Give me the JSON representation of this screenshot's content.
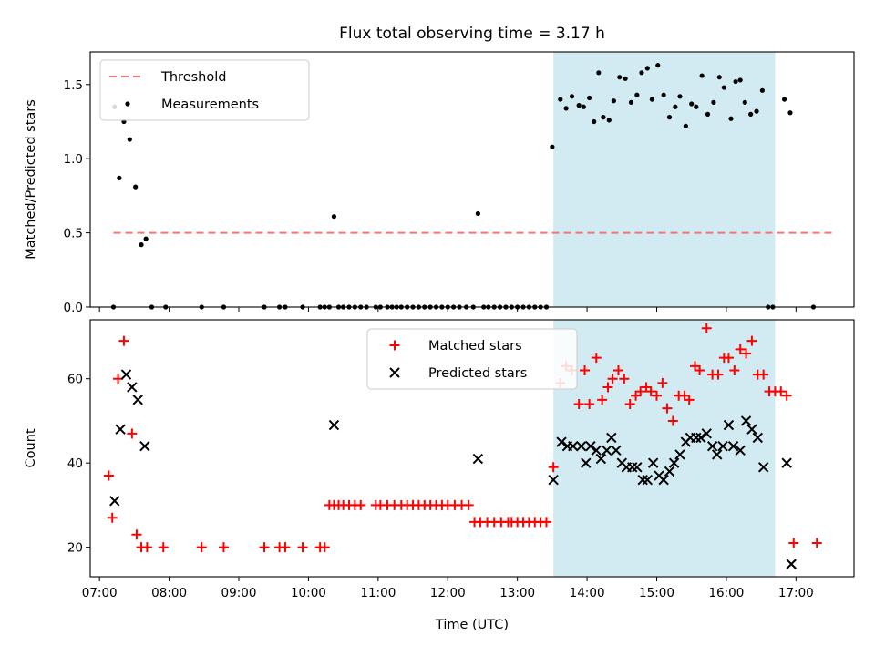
{
  "figure": {
    "title": "Flux total observing time = 3.17 h",
    "shade_color": "#add8e6"
  },
  "chart_data": [
    {
      "type": "scatter",
      "ylabel": "Matched/Predicted stars",
      "xlabel": "",
      "xlim": [
        "06:52",
        "17:50"
      ],
      "ylim": [
        0,
        1.72
      ],
      "x_tick_labels": [],
      "y_ticks": [
        0.0,
        0.5,
        1.0,
        1.5
      ],
      "y_tick_labels": [
        "0.0",
        "0.5",
        "1.0",
        "1.5"
      ],
      "shaded_interval": [
        "13:31",
        "16:42"
      ],
      "legend": {
        "placement": "upper left",
        "entries": [
          "Threshold",
          "Measurements"
        ]
      },
      "series": [
        {
          "name": "Threshold",
          "style": "dashed-line",
          "color": "#ff7070",
          "x": [
            "07:12",
            "17:31"
          ],
          "y": [
            0.5,
            0.5
          ]
        },
        {
          "name": "Measurements",
          "style": "dot",
          "color": "#000000",
          "points": [
            [
              "07:12",
              0.0
            ],
            [
              "07:13",
              1.35
            ],
            [
              "07:17",
              0.87
            ],
            [
              "07:21",
              1.25
            ],
            [
              "07:26",
              1.13
            ],
            [
              "07:31",
              0.81
            ],
            [
              "07:36",
              0.42
            ],
            [
              "07:40",
              0.46
            ],
            [
              "07:45",
              0.0
            ],
            [
              "07:57",
              0.0
            ],
            [
              "08:28",
              0.0
            ],
            [
              "08:47",
              0.0
            ],
            [
              "09:22",
              0.0
            ],
            [
              "09:35",
              0.0
            ],
            [
              "09:40",
              0.0
            ],
            [
              "09:55",
              0.0
            ],
            [
              "10:10",
              0.0
            ],
            [
              "10:14",
              0.0
            ],
            [
              "10:18",
              0.0
            ],
            [
              "10:22",
              0.61
            ],
            [
              "10:26",
              0.0
            ],
            [
              "10:30",
              0.0
            ],
            [
              "10:35",
              0.0
            ],
            [
              "10:40",
              0.0
            ],
            [
              "10:45",
              0.0
            ],
            [
              "10:50",
              0.0
            ],
            [
              "10:58",
              0.0
            ],
            [
              "11:02",
              0.0
            ],
            [
              "11:08",
              0.0
            ],
            [
              "11:12",
              0.0
            ],
            [
              "11:16",
              0.0
            ],
            [
              "11:20",
              0.0
            ],
            [
              "11:25",
              0.0
            ],
            [
              "11:30",
              0.0
            ],
            [
              "11:35",
              0.0
            ],
            [
              "11:40",
              0.0
            ],
            [
              "11:45",
              0.0
            ],
            [
              "11:50",
              0.0
            ],
            [
              "11:55",
              0.0
            ],
            [
              "12:00",
              0.0
            ],
            [
              "12:05",
              0.0
            ],
            [
              "12:10",
              0.0
            ],
            [
              "12:16",
              0.0
            ],
            [
              "12:22",
              0.0
            ],
            [
              "12:26",
              0.63
            ],
            [
              "12:31",
              0.0
            ],
            [
              "12:35",
              0.0
            ],
            [
              "12:40",
              0.0
            ],
            [
              "12:45",
              0.0
            ],
            [
              "12:50",
              0.0
            ],
            [
              "12:55",
              0.0
            ],
            [
              "13:00",
              0.0
            ],
            [
              "13:05",
              0.0
            ],
            [
              "13:10",
              0.0
            ],
            [
              "13:15",
              0.0
            ],
            [
              "13:20",
              0.0
            ],
            [
              "13:25",
              0.0
            ],
            [
              "13:30",
              1.08
            ],
            [
              "13:37",
              1.4
            ],
            [
              "13:42",
              1.34
            ],
            [
              "13:47",
              1.42
            ],
            [
              "13:53",
              1.36
            ],
            [
              "13:57",
              1.35
            ],
            [
              "14:02",
              1.41
            ],
            [
              "14:06",
              1.25
            ],
            [
              "14:10",
              1.58
            ],
            [
              "14:14",
              1.28
            ],
            [
              "14:19",
              1.26
            ],
            [
              "14:23",
              1.39
            ],
            [
              "14:28",
              1.55
            ],
            [
              "14:33",
              1.54
            ],
            [
              "14:38",
              1.38
            ],
            [
              "14:43",
              1.43
            ],
            [
              "14:47",
              1.58
            ],
            [
              "14:52",
              1.61
            ],
            [
              "14:56",
              1.4
            ],
            [
              "15:01",
              1.63
            ],
            [
              "15:06",
              1.43
            ],
            [
              "15:11",
              1.28
            ],
            [
              "15:16",
              1.35
            ],
            [
              "15:20",
              1.42
            ],
            [
              "15:25",
              1.22
            ],
            [
              "15:30",
              1.37
            ],
            [
              "15:34",
              1.35
            ],
            [
              "15:39",
              1.56
            ],
            [
              "15:44",
              1.3
            ],
            [
              "15:49",
              1.38
            ],
            [
              "15:54",
              1.55
            ],
            [
              "15:58",
              1.48
            ],
            [
              "16:04",
              1.27
            ],
            [
              "16:08",
              1.52
            ],
            [
              "16:12",
              1.53
            ],
            [
              "16:16",
              1.38
            ],
            [
              "16:21",
              1.3
            ],
            [
              "16:26",
              1.32
            ],
            [
              "16:31",
              1.46
            ],
            [
              "16:36",
              0.0
            ],
            [
              "16:40",
              0.0
            ],
            [
              "16:50",
              1.4
            ],
            [
              "16:55",
              1.31
            ],
            [
              "17:15",
              0.0
            ]
          ]
        }
      ]
    },
    {
      "type": "scatter",
      "xlabel": "Time (UTC)",
      "ylabel": "Count",
      "xlim": [
        "06:52",
        "17:50"
      ],
      "ylim": [
        13,
        74
      ],
      "x_tick_labels": [
        "07:00",
        "08:00",
        "09:00",
        "10:00",
        "11:00",
        "12:00",
        "13:00",
        "14:00",
        "15:00",
        "16:00",
        "17:00"
      ],
      "y_ticks": [
        20,
        40,
        60
      ],
      "y_tick_labels": [
        "20",
        "40",
        "60"
      ],
      "shaded_interval": [
        "13:31",
        "16:42"
      ],
      "legend": {
        "placement": "upper center",
        "entries": [
          "Matched stars",
          "Predicted stars"
        ]
      },
      "series": [
        {
          "name": "Matched stars",
          "marker": "plus",
          "color": "#ff0000",
          "points": [
            [
              "07:08",
              37
            ],
            [
              "07:11",
              27
            ],
            [
              "07:16",
              60
            ],
            [
              "07:21",
              69
            ],
            [
              "07:28",
              47
            ],
            [
              "07:32",
              23
            ],
            [
              "07:36",
              20
            ],
            [
              "07:41",
              20
            ],
            [
              "07:55",
              20
            ],
            [
              "08:28",
              20
            ],
            [
              "08:47",
              20
            ],
            [
              "09:22",
              20
            ],
            [
              "09:35",
              20
            ],
            [
              "09:40",
              20
            ],
            [
              "09:55",
              20
            ],
            [
              "10:10",
              20
            ],
            [
              "10:14",
              20
            ],
            [
              "10:18",
              30
            ],
            [
              "10:22",
              30
            ],
            [
              "10:26",
              30
            ],
            [
              "10:30",
              30
            ],
            [
              "10:35",
              30
            ],
            [
              "10:40",
              30
            ],
            [
              "10:45",
              30
            ],
            [
              "10:58",
              30
            ],
            [
              "11:02",
              30
            ],
            [
              "11:08",
              30
            ],
            [
              "11:14",
              30
            ],
            [
              "11:20",
              30
            ],
            [
              "11:25",
              30
            ],
            [
              "11:30",
              30
            ],
            [
              "11:35",
              30
            ],
            [
              "11:40",
              30
            ],
            [
              "11:45",
              30
            ],
            [
              "11:50",
              30
            ],
            [
              "11:55",
              30
            ],
            [
              "12:00",
              30
            ],
            [
              "12:06",
              30
            ],
            [
              "12:12",
              30
            ],
            [
              "12:18",
              30
            ],
            [
              "12:23",
              26
            ],
            [
              "12:28",
              26
            ],
            [
              "12:34",
              26
            ],
            [
              "12:40",
              26
            ],
            [
              "12:46",
              26
            ],
            [
              "12:52",
              26
            ],
            [
              "12:55",
              26
            ],
            [
              "13:00",
              26
            ],
            [
              "13:05",
              26
            ],
            [
              "13:10",
              26
            ],
            [
              "13:15",
              26
            ],
            [
              "13:20",
              26
            ],
            [
              "13:25",
              26
            ],
            [
              "13:31",
              39
            ],
            [
              "13:37",
              59
            ],
            [
              "13:42",
              63
            ],
            [
              "13:47",
              62
            ],
            [
              "13:53",
              54
            ],
            [
              "13:58",
              62
            ],
            [
              "14:02",
              54
            ],
            [
              "14:08",
              65
            ],
            [
              "14:13",
              55
            ],
            [
              "14:18",
              58
            ],
            [
              "14:22",
              60
            ],
            [
              "14:27",
              62
            ],
            [
              "14:32",
              60
            ],
            [
              "14:37",
              54
            ],
            [
              "14:42",
              56
            ],
            [
              "14:46",
              57
            ],
            [
              "14:51",
              58
            ],
            [
              "14:55",
              57
            ],
            [
              "15:00",
              56
            ],
            [
              "15:05",
              59
            ],
            [
              "15:09",
              53
            ],
            [
              "15:14",
              50
            ],
            [
              "15:19",
              56
            ],
            [
              "15:24",
              56
            ],
            [
              "15:28",
              55
            ],
            [
              "15:33",
              63
            ],
            [
              "15:37",
              62
            ],
            [
              "15:43",
              72
            ],
            [
              "15:48",
              61
            ],
            [
              "15:53",
              61
            ],
            [
              "15:58",
              65
            ],
            [
              "16:02",
              65
            ],
            [
              "16:07",
              62
            ],
            [
              "16:12",
              67
            ],
            [
              "16:17",
              66
            ],
            [
              "16:22",
              69
            ],
            [
              "16:27",
              61
            ],
            [
              "16:32",
              61
            ],
            [
              "16:37",
              57
            ],
            [
              "16:42",
              57
            ],
            [
              "16:47",
              57
            ],
            [
              "16:52",
              56
            ],
            [
              "16:58",
              21
            ],
            [
              "17:18",
              21
            ]
          ]
        },
        {
          "name": "Predicted stars",
          "marker": "x",
          "color": "#000000",
          "points": [
            [
              "07:13",
              31
            ],
            [
              "07:18",
              48
            ],
            [
              "07:23",
              61
            ],
            [
              "07:28",
              58
            ],
            [
              "07:33",
              55
            ],
            [
              "07:39",
              44
            ],
            [
              "10:22",
              49
            ],
            [
              "12:26",
              41
            ],
            [
              "13:31",
              36
            ],
            [
              "13:38",
              45
            ],
            [
              "13:43",
              44
            ],
            [
              "13:48",
              44
            ],
            [
              "13:55",
              44
            ],
            [
              "13:59",
              40
            ],
            [
              "14:03",
              44
            ],
            [
              "14:08",
              43
            ],
            [
              "14:12",
              41
            ],
            [
              "14:17",
              43
            ],
            [
              "14:21",
              46
            ],
            [
              "14:25",
              43
            ],
            [
              "14:30",
              40
            ],
            [
              "14:34",
              39
            ],
            [
              "14:39",
              39
            ],
            [
              "14:43",
              39
            ],
            [
              "14:48",
              36
            ],
            [
              "14:52",
              36
            ],
            [
              "14:57",
              40
            ],
            [
              "15:02",
              37
            ],
            [
              "15:06",
              36
            ],
            [
              "15:11",
              38
            ],
            [
              "15:15",
              40
            ],
            [
              "15:20",
              42
            ],
            [
              "15:25",
              45
            ],
            [
              "15:29",
              46
            ],
            [
              "15:34",
              46
            ],
            [
              "15:38",
              46
            ],
            [
              "15:43",
              47
            ],
            [
              "15:48",
              44
            ],
            [
              "15:52",
              42
            ],
            [
              "15:57",
              44
            ],
            [
              "16:02",
              49
            ],
            [
              "16:06",
              44
            ],
            [
              "16:12",
              43
            ],
            [
              "16:17",
              50
            ],
            [
              "16:22",
              48
            ],
            [
              "16:27",
              46
            ],
            [
              "16:32",
              39
            ],
            [
              "16:52",
              40
            ],
            [
              "16:56",
              16
            ]
          ]
        }
      ]
    }
  ]
}
